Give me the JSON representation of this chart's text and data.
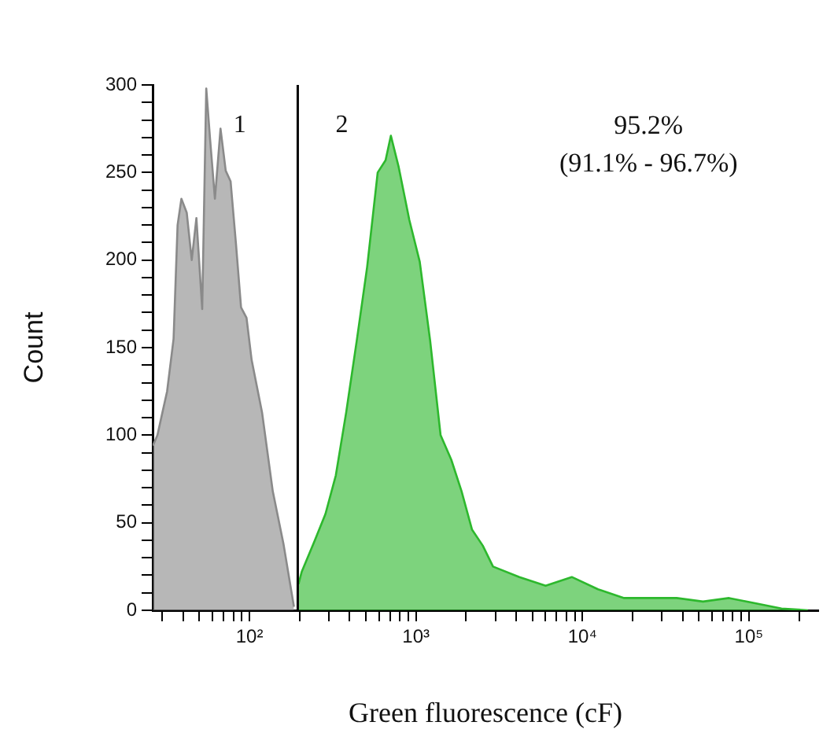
{
  "chart_data": {
    "type": "area",
    "xlabel": "Green fluorescence (cF)",
    "ylabel": "Count",
    "log": "x",
    "grid": false,
    "legend": false,
    "xlim": [
      26.2,
      261000
    ],
    "ylim": [
      0,
      300
    ],
    "xticks": [
      {
        "value": 30,
        "label": null
      },
      {
        "value": 40,
        "label": null
      },
      {
        "value": 50,
        "label": null
      },
      {
        "value": 60,
        "label": null
      },
      {
        "value": 70,
        "label": null
      },
      {
        "value": 80,
        "label": null
      },
      {
        "value": 90,
        "label": null
      },
      {
        "value": 100,
        "label": "10²"
      },
      {
        "value": 200,
        "label": null
      },
      {
        "value": 300,
        "label": null
      },
      {
        "value": 400,
        "label": null
      },
      {
        "value": 500,
        "label": null
      },
      {
        "value": 600,
        "label": null
      },
      {
        "value": 700,
        "label": null
      },
      {
        "value": 800,
        "label": null
      },
      {
        "value": 900,
        "label": null
      },
      {
        "value": 1000,
        "label": "10³"
      },
      {
        "value": 2000,
        "label": null
      },
      {
        "value": 3000,
        "label": null
      },
      {
        "value": 4000,
        "label": null
      },
      {
        "value": 5000,
        "label": null
      },
      {
        "value": 6000,
        "label": null
      },
      {
        "value": 7000,
        "label": null
      },
      {
        "value": 8000,
        "label": null
      },
      {
        "value": 9000,
        "label": null
      },
      {
        "value": 10000,
        "label": "10⁴"
      },
      {
        "value": 20000,
        "label": null
      },
      {
        "value": 30000,
        "label": null
      },
      {
        "value": 40000,
        "label": null
      },
      {
        "value": 50000,
        "label": null
      },
      {
        "value": 60000,
        "label": null
      },
      {
        "value": 70000,
        "label": null
      },
      {
        "value": 80000,
        "label": null
      },
      {
        "value": 90000,
        "label": null
      },
      {
        "value": 100000,
        "label": "10⁵"
      },
      {
        "value": 200000,
        "label": null
      }
    ],
    "yticks": [
      0,
      {
        "value": 10,
        "label": null
      },
      {
        "value": 20,
        "label": null
      },
      {
        "value": 30,
        "label": null
      },
      {
        "value": 40,
        "label": null
      },
      50,
      {
        "value": 60,
        "label": null
      },
      {
        "value": 70,
        "label": null
      },
      {
        "value": 80,
        "label": null
      },
      {
        "value": 90,
        "label": null
      },
      100,
      {
        "value": 110,
        "label": null
      },
      {
        "value": 120,
        "label": null
      },
      {
        "value": 130,
        "label": null
      },
      {
        "value": 140,
        "label": null
      },
      150,
      {
        "value": 160,
        "label": null
      },
      {
        "value": 170,
        "label": null
      },
      {
        "value": 180,
        "label": null
      },
      {
        "value": 190,
        "label": null
      },
      200,
      {
        "value": 210,
        "label": null
      },
      {
        "value": 220,
        "label": null
      },
      {
        "value": 230,
        "label": null
      },
      {
        "value": 240,
        "label": null
      },
      250,
      {
        "value": 260,
        "label": null
      },
      {
        "value": 270,
        "label": null
      },
      {
        "value": 280,
        "label": null
      },
      {
        "value": 290,
        "label": null
      },
      300
    ],
    "ref_lines": [
      {
        "axis": "x",
        "value": 195,
        "color": "#000000"
      }
    ],
    "annotations": [
      "1",
      "2",
      "95.2%",
      "(91.1% - 96.7%)"
    ],
    "series": [
      {
        "color": "#8a8a8a",
        "x": [
          26.3,
          28,
          30,
          32,
          35,
          37,
          39,
          42,
          45,
          48,
          52,
          55,
          58,
          62,
          67,
          72,
          77,
          83,
          89,
          96,
          103,
          119,
          138,
          160,
          185
        ],
        "values": [
          94,
          100,
          113,
          125,
          155,
          220,
          235,
          227,
          200,
          224,
          172,
          298,
          269,
          235,
          275,
          251,
          245,
          209,
          173,
          167,
          143,
          113,
          68,
          38,
          2
        ]
      },
      {
        "color": "#2db82d",
        "x": [
          197,
          206,
          247,
          286,
          330,
          381,
          441,
          509,
          589,
          657,
          707,
          788,
          912,
          1054,
          1217,
          1406,
          1630,
          1879,
          2173,
          2518,
          2904,
          4178,
          6012,
          8630,
          12400,
          17800,
          25600,
          36800,
          53000,
          76000,
          109000,
          157000,
          226000
        ],
        "values": [
          15,
          22,
          40,
          55,
          77,
          113,
          154,
          196,
          250,
          257,
          271,
          253,
          223,
          199,
          154,
          100,
          86,
          68,
          46,
          37,
          25,
          19,
          14,
          19,
          12,
          7,
          7,
          7,
          5,
          7,
          4,
          1,
          0
        ]
      }
    ]
  }
}
